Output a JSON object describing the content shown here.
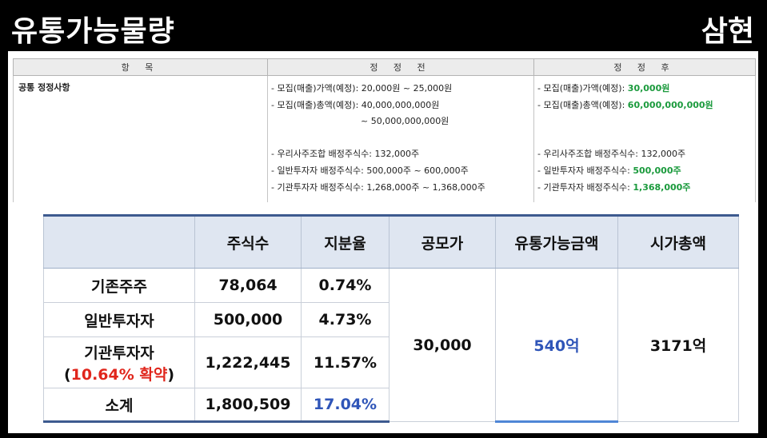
{
  "header": {
    "title": "유통가능물량",
    "company": "삼현"
  },
  "revision_table": {
    "headers": [
      "항 목",
      "정 정 전",
      "정 정 후"
    ],
    "item": "공통 정정사항",
    "before": [
      "- 모집(매출)가액(예정): 20,000원 ~ 25,000원",
      "- 모집(매출)총액(예정): 40,000,000,000원",
      "~ 50,000,000,000원",
      "",
      "- 우리사주조합 배정주식수: 132,000주",
      "- 일반투자자 배정주식수: 500,000주 ~ 600,000주",
      "- 기관투자자 배정주식수: 1,268,000주 ~ 1,368,000주"
    ],
    "after": [
      {
        "prefix": "- 모집(매출)가액(예정): ",
        "value": "30,000원"
      },
      {
        "prefix": "- 모집(매출)총액(예정): ",
        "value": "60,000,000,000원"
      },
      {
        "prefix": "",
        "value": ""
      },
      {
        "prefix": "",
        "value": ""
      },
      {
        "prefix": "- 우리사주조합 배정주식수: 132,000주",
        "value": ""
      },
      {
        "prefix": "- 일반투자자 배정주식수: ",
        "value": "500,000주"
      },
      {
        "prefix": "- 기관투자자 배정주식수: ",
        "value": "1,368,000주"
      }
    ]
  },
  "share_table": {
    "headers": [
      "",
      "주식수",
      "지분율",
      "공모가",
      "유통가능금액",
      "시가총액"
    ],
    "rows": [
      {
        "label": "기존주주",
        "shares": "78,064",
        "ratio": "0.74%"
      },
      {
        "label": "일반투자자",
        "shares": "500,000",
        "ratio": "4.73%"
      },
      {
        "label": "기관투자자",
        "label_sub_open": "(",
        "label_sub": "10.64% 확약",
        "label_sub_close": ")",
        "shares": "1,222,445",
        "ratio": "11.57%"
      },
      {
        "label": "소계",
        "shares": "1,800,509",
        "ratio": "17.04%"
      }
    ],
    "offer_price": "30,000",
    "tradable_amount": "540억",
    "market_cap": "3171억"
  },
  "colors": {
    "green": "#1a9a3c",
    "red": "#e0261c",
    "blue": "#2f55b8",
    "header_fill": "#dfe6f1",
    "border_navy": "#3d5a8f"
  }
}
